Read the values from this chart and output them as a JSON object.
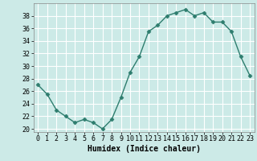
{
  "x": [
    0,
    1,
    2,
    3,
    4,
    5,
    6,
    7,
    8,
    9,
    10,
    11,
    12,
    13,
    14,
    15,
    16,
    17,
    18,
    19,
    20,
    21,
    22,
    23
  ],
  "y": [
    27,
    25.5,
    23,
    22,
    21,
    21.5,
    21,
    20,
    21.5,
    25,
    29,
    31.5,
    35.5,
    36.5,
    38,
    38.5,
    39,
    38,
    38.5,
    37,
    37,
    35.5,
    31.5,
    28.5
  ],
  "line_color": "#2e7d6e",
  "marker": "D",
  "marker_size": 2.5,
  "bg_color": "#cceae7",
  "grid_color": "#ffffff",
  "xlabel": "Humidex (Indice chaleur)",
  "ylabel": "",
  "xlim": [
    -0.5,
    23.5
  ],
  "ylim": [
    19.5,
    40
  ],
  "yticks": [
    20,
    22,
    24,
    26,
    28,
    30,
    32,
    34,
    36,
    38
  ],
  "xticks": [
    0,
    1,
    2,
    3,
    4,
    5,
    6,
    7,
    8,
    9,
    10,
    11,
    12,
    13,
    14,
    15,
    16,
    17,
    18,
    19,
    20,
    21,
    22,
    23
  ],
  "xlabel_fontsize": 7,
  "tick_fontsize": 6,
  "linewidth": 1.0
}
